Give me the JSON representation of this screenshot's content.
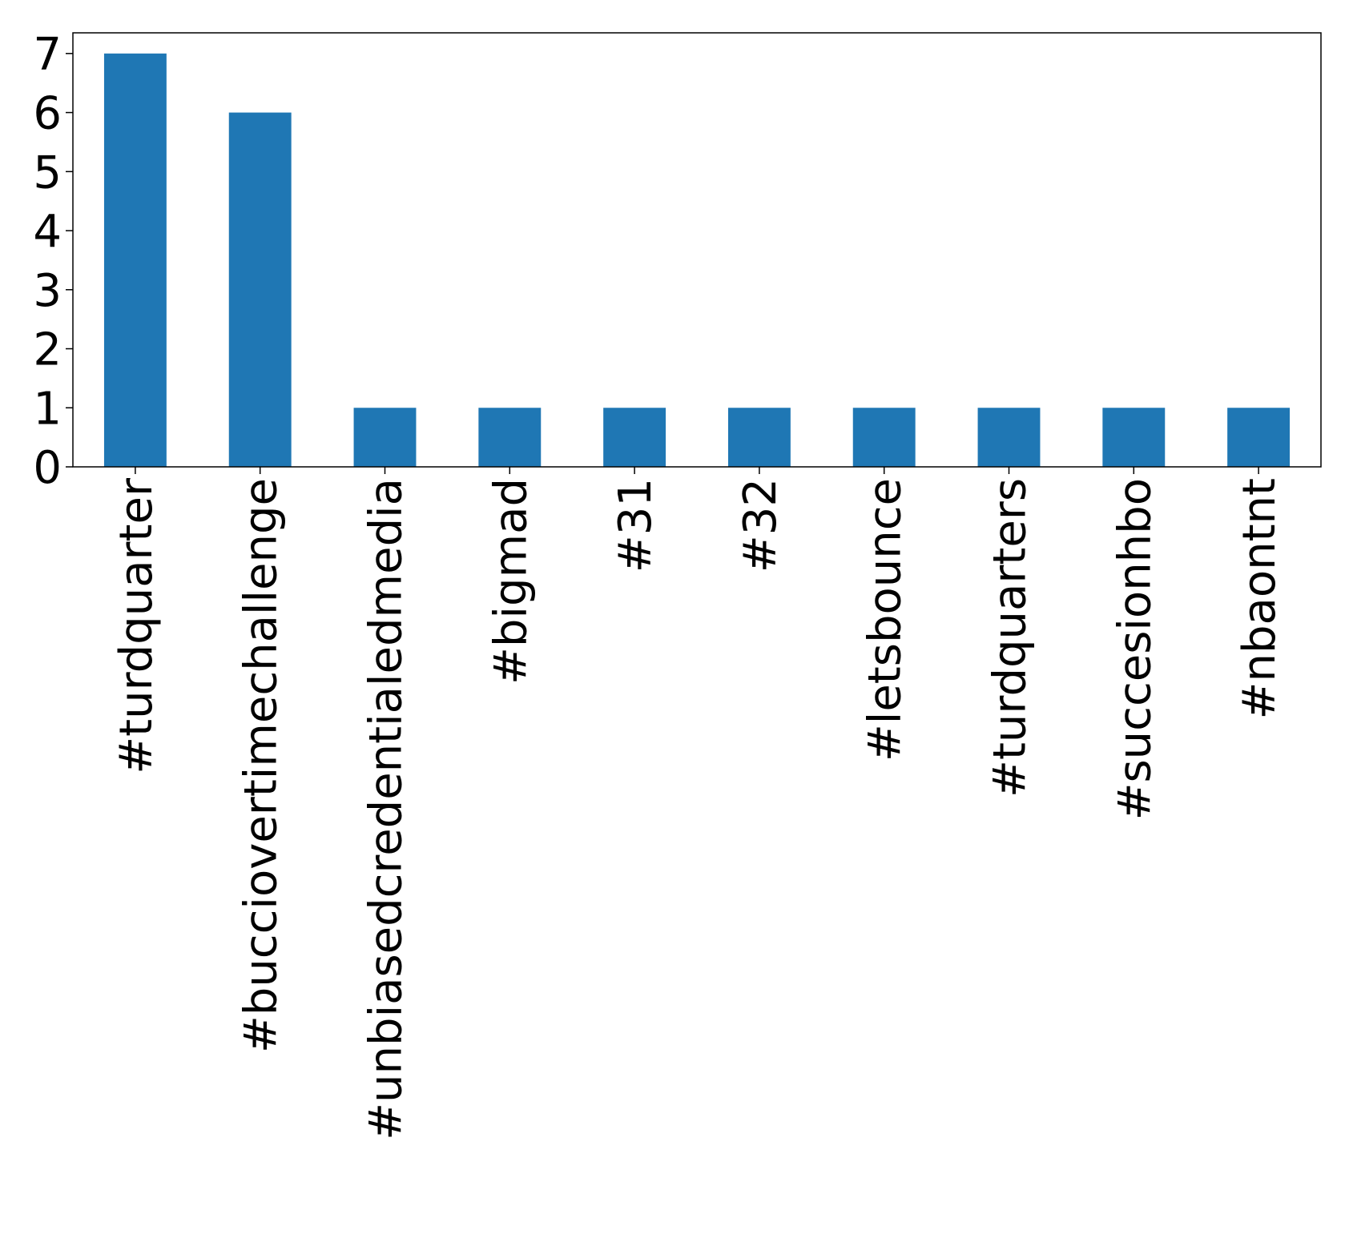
{
  "chart_data": {
    "type": "bar",
    "categories": [
      "#turdquarter",
      "#bucciovertimechallenge",
      "#unbiasedcredentialedmedia",
      "#bigmad",
      "#31",
      "#32",
      "#letsbounce",
      "#turdquarters",
      "#succesionhbo",
      "#nbaontnt"
    ],
    "values": [
      7,
      6,
      1,
      1,
      1,
      1,
      1,
      1,
      1,
      1
    ],
    "yticks": [
      0,
      1,
      2,
      3,
      4,
      5,
      6,
      7
    ],
    "ylim": [
      0,
      7.35
    ],
    "bar_color": "#1f77b4",
    "grid": false,
    "legend": "none"
  }
}
